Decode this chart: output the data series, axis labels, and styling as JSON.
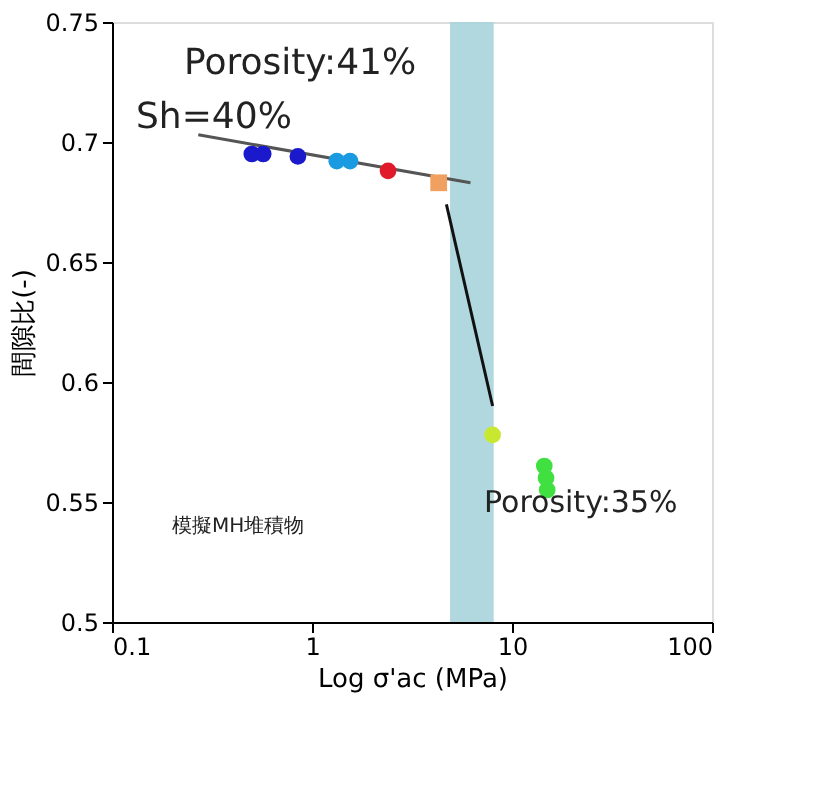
{
  "chart_data": {
    "type": "scatter",
    "xlabel": "Log σ'ac (MPa)",
    "ylabel": "間隙比(-)",
    "log": "x",
    "grid": false,
    "marker": "circle",
    "xlim": [
      0.1,
      100
    ],
    "xticks": [
      0.1,
      1,
      10,
      100
    ],
    "ylim": [
      0.5,
      0.75
    ],
    "yticks": [
      0.5,
      0.55,
      0.6,
      0.65,
      0.7,
      0.75
    ],
    "bands": [
      {
        "axis": "x",
        "from": 4.9,
        "to": 8.1,
        "color": "#a8d4dc"
      }
    ],
    "series": [
      {
        "type": "line",
        "color": "#555555",
        "marker": "none",
        "x": [
          0.27,
          6.2
        ],
        "values": [
          0.703,
          0.683
        ]
      },
      {
        "type": "line",
        "color": "#111111",
        "marker": "none",
        "x": [
          4.7,
          8.0
        ],
        "values": [
          0.674,
          0.59
        ]
      },
      {
        "color": "#1a1acc",
        "x": [
          0.5,
          0.57,
          0.85
        ],
        "values": [
          0.695,
          0.695,
          0.694
        ]
      },
      {
        "color": "#1a9ae0",
        "x": [
          1.33,
          1.55
        ],
        "values": [
          0.692,
          0.692
        ]
      },
      {
        "color": "#e01a2a",
        "x": [
          2.4
        ],
        "values": [
          0.688
        ]
      },
      {
        "color": "#f0a060",
        "marker": "square",
        "x": [
          4.3
        ],
        "values": [
          0.683
        ]
      },
      {
        "color": "#c8e830",
        "x": [
          8.0
        ],
        "values": [
          0.578
        ]
      },
      {
        "color": "#40e040",
        "x": [
          14.5,
          14.8,
          15
        ],
        "values": [
          0.565,
          0.56,
          0.555
        ]
      }
    ],
    "annotations": [
      "Porosity:41%",
      "Sh=40%",
      "Porosity:35%",
      "模擬MH堆積物"
    ]
  }
}
